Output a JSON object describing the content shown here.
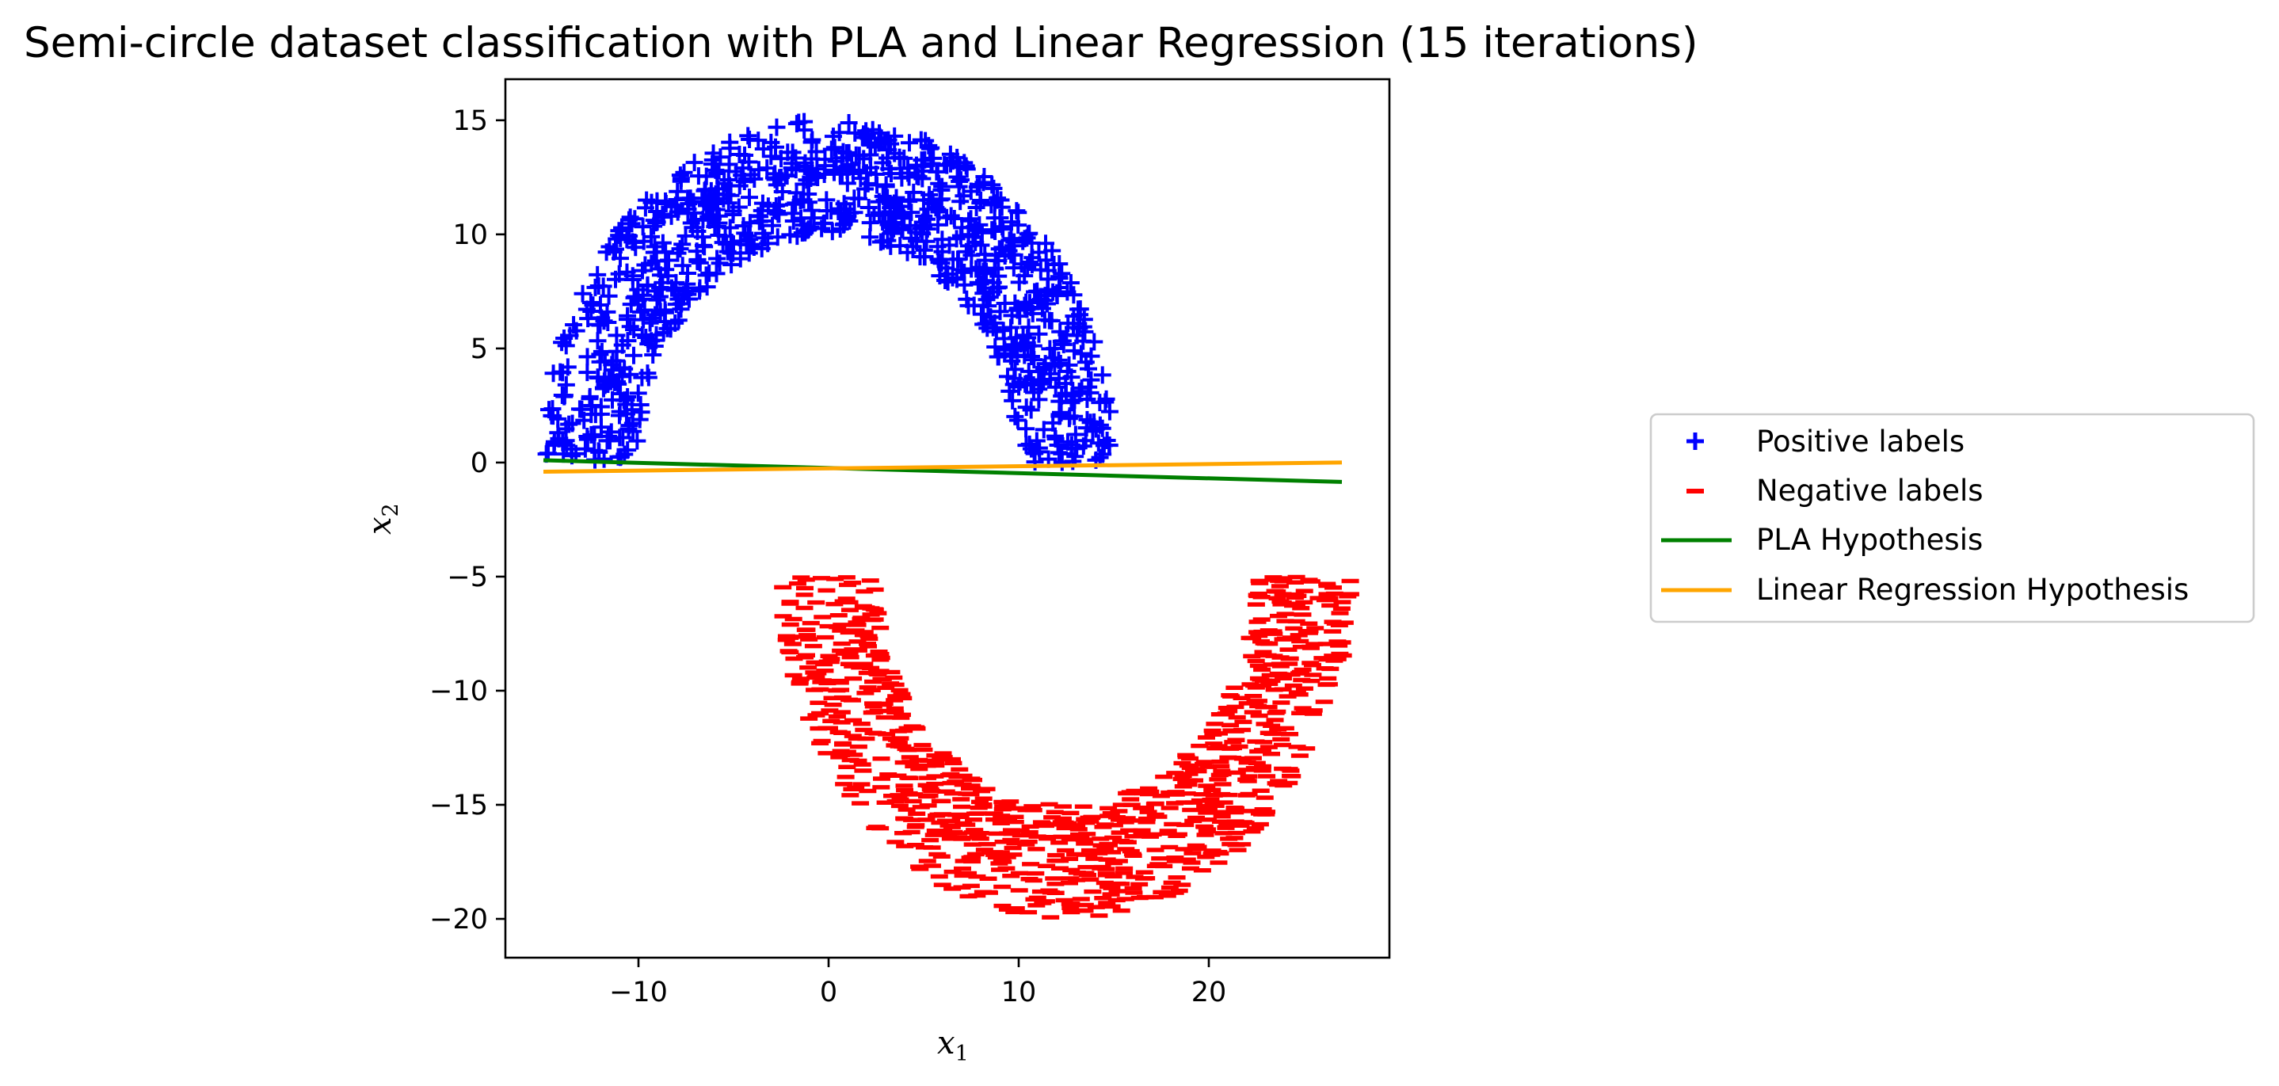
{
  "chart_data": {
    "type": "scatter",
    "title": "Semi-circle dataset classification with PLA and Linear Regression (15 iterations)",
    "xlabel": {
      "base": "x",
      "sub": "1"
    },
    "ylabel": {
      "base": "x",
      "sub": "2"
    },
    "xlim": [
      -17,
      29.5
    ],
    "ylim": [
      -21.7,
      16.8
    ],
    "xticks": [
      -10,
      0,
      10,
      20
    ],
    "xtick_labels": [
      "−10",
      "0",
      "10",
      "20"
    ],
    "yticks": [
      15,
      10,
      5,
      0,
      -5,
      -10,
      -15,
      -20
    ],
    "ytick_labels": [
      "15",
      "10",
      "5",
      "0",
      "−5",
      "−10",
      "−15",
      "−20"
    ],
    "grid": false,
    "legend_position": "outside-right",
    "colors": {
      "positive": "#0000ff",
      "negative": "#ff0000",
      "pla": "#008000",
      "linreg": "#ffa500"
    },
    "semicircles": {
      "positive": {
        "center": [
          0,
          0
        ],
        "inner_radius": 10,
        "outer_radius": 15,
        "half": "upper",
        "count": 1000,
        "marker": "plus"
      },
      "negative": {
        "center": [
          12.5,
          -5
        ],
        "inner_radius": 10,
        "outer_radius": 15,
        "half": "lower",
        "count": 1000,
        "marker": "minus"
      }
    },
    "series": [
      {
        "name": "Positive labels",
        "kind": "points",
        "marker": "plus",
        "color": "#0000ff"
      },
      {
        "name": "Negative labels",
        "kind": "points",
        "marker": "minus",
        "color": "#ff0000"
      },
      {
        "name": "PLA Hypothesis",
        "kind": "line",
        "color": "#008000",
        "x": [
          -15,
          27
        ],
        "y": [
          0.1,
          -0.85
        ]
      },
      {
        "name": "Linear Regression Hypothesis",
        "kind": "line",
        "color": "#ffa500",
        "x": [
          -15,
          27
        ],
        "y": [
          -0.4,
          0.0
        ]
      }
    ]
  }
}
